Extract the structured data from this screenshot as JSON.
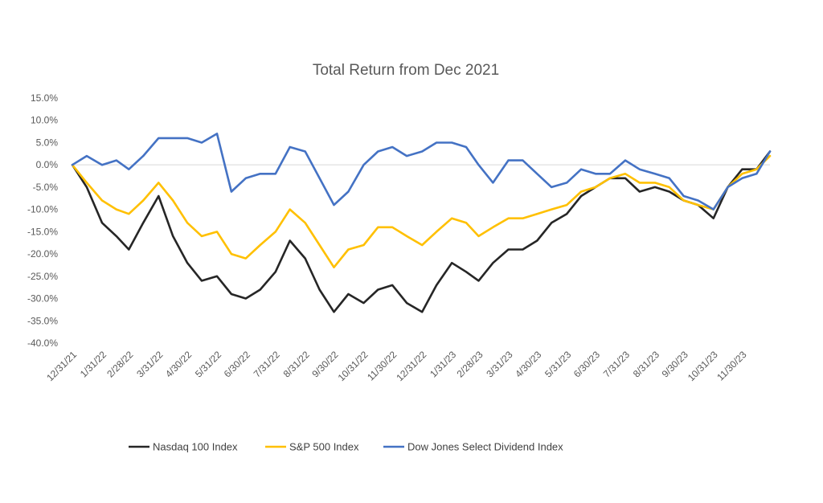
{
  "chart_data": {
    "type": "line",
    "title": "Total Return from Dec 2021",
    "xlabel": "",
    "ylabel": "",
    "ylim": [
      -40,
      15
    ],
    "y_ticks": [
      "15.0%",
      "10.0%",
      "5.0%",
      "0.0%",
      "-5.0%",
      "-10.0%",
      "-15.0%",
      "-20.0%",
      "-25.0%",
      "-30.0%",
      "-35.0%",
      "-40.0%"
    ],
    "x_ticks": [
      "12/31/21",
      "1/31/22",
      "2/28/22",
      "3/31/22",
      "4/30/22",
      "5/31/22",
      "6/30/22",
      "7/31/22",
      "8/31/22",
      "9/30/22",
      "10/31/22",
      "11/30/22",
      "12/31/22",
      "1/31/23",
      "2/28/23",
      "3/31/23",
      "4/30/23",
      "5/31/23",
      "6/30/23",
      "7/31/23",
      "8/31/23",
      "9/30/23",
      "10/31/23",
      "11/30/23"
    ],
    "x": [
      "12/31/21",
      "1/15/22",
      "1/31/22",
      "2/15/22",
      "2/28/22",
      "3/15/22",
      "3/31/22",
      "4/15/22",
      "4/30/22",
      "5/15/22",
      "5/31/22",
      "6/15/22",
      "6/30/22",
      "7/15/22",
      "7/31/22",
      "8/15/22",
      "8/31/22",
      "9/15/22",
      "9/30/22",
      "10/15/22",
      "10/31/22",
      "11/15/22",
      "11/30/22",
      "12/15/22",
      "12/31/22",
      "1/15/23",
      "1/31/23",
      "2/15/23",
      "2/28/23",
      "3/15/23",
      "3/31/23",
      "4/15/23",
      "4/30/23",
      "5/15/23",
      "5/31/23",
      "6/15/23",
      "6/30/23",
      "7/15/23",
      "7/31/23",
      "8/15/23",
      "8/31/23",
      "9/15/23",
      "9/30/23",
      "10/15/23",
      "10/31/23",
      "11/15/23",
      "11/30/23",
      "12/15/23",
      "12/29/23"
    ],
    "series": [
      {
        "name": "Nasdaq 100 Index",
        "color": "#262626",
        "values": [
          0,
          -5,
          -13,
          -16,
          -19,
          -13,
          -7,
          -16,
          -22,
          -26,
          -25,
          -29,
          -30,
          -28,
          -24,
          -17,
          -21,
          -28,
          -33,
          -29,
          -31,
          -28,
          -27,
          -31,
          -33,
          -27,
          -22,
          -24,
          -26,
          -22,
          -19,
          -19,
          -17,
          -13,
          -11,
          -7,
          -5,
          -3,
          -3,
          -6,
          -5,
          -6,
          -8,
          -9,
          -12,
          -5,
          -1,
          -1,
          3
        ]
      },
      {
        "name": "S&P 500 Index",
        "color": "#FFC000",
        "values": [
          0,
          -4,
          -8,
          -10,
          -11,
          -8,
          -4,
          -8,
          -13,
          -16,
          -15,
          -20,
          -21,
          -18,
          -15,
          -10,
          -13,
          -18,
          -23,
          -19,
          -18,
          -14,
          -14,
          -16,
          -18,
          -15,
          -12,
          -13,
          -16,
          -14,
          -12,
          -12,
          -11,
          -10,
          -9,
          -6,
          -5,
          -3,
          -2,
          -4,
          -4,
          -5,
          -8,
          -9,
          -10,
          -5,
          -2,
          -1,
          2
        ]
      },
      {
        "name": "Dow Jones Select Dividend Index",
        "color": "#4472C4",
        "values": [
          0,
          2,
          0,
          1,
          -1,
          2,
          6,
          6,
          6,
          5,
          7,
          -6,
          -3,
          -2,
          -2,
          4,
          3,
          -3,
          -9,
          -6,
          0,
          3,
          4,
          2,
          3,
          5,
          5,
          4,
          0,
          -4,
          1,
          1,
          -2,
          -5,
          -4,
          -1,
          -2,
          -2,
          1,
          -1,
          -2,
          -3,
          -7,
          -8,
          -10,
          -5,
          -3,
          -2,
          3
        ]
      }
    ],
    "legend_position": "bottom",
    "grid": false
  }
}
